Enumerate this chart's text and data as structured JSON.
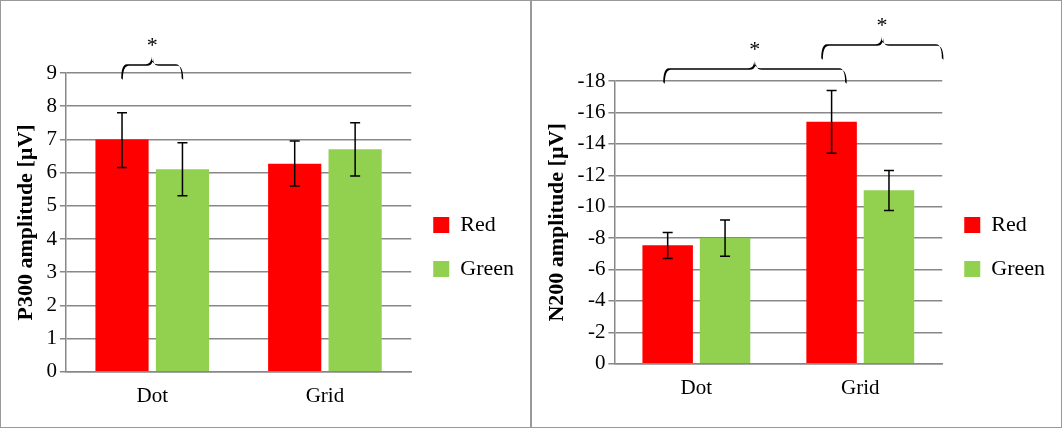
{
  "chart_data": [
    {
      "type": "bar",
      "ylabel": "P300 amplitude [µV]",
      "categories": [
        "Dot",
        "Grid"
      ],
      "ylim": [
        0,
        9
      ],
      "yticks": [
        0,
        1,
        2,
        3,
        4,
        5,
        6,
        7,
        8,
        9
      ],
      "grid": "y",
      "legend": "right",
      "annotations": [
        "*"
      ],
      "series": [
        {
          "name": "Red",
          "color": "#ff0000",
          "values": [
            7.0,
            6.27
          ],
          "errors": [
            [
              6.15,
              7.8
            ],
            [
              5.6,
              6.95
            ]
          ]
        },
        {
          "name": "Green",
          "color": "#92d050",
          "values": [
            6.1,
            6.7
          ],
          "errors": [
            [
              5.3,
              6.9
            ],
            [
              5.9,
              7.5
            ]
          ]
        }
      ]
    },
    {
      "type": "bar",
      "ylabel": "N200 amplitude [µV]",
      "categories": [
        "Dot",
        "Grid"
      ],
      "ylim": [
        0,
        -18
      ],
      "yticks": [
        0,
        -2,
        -4,
        -6,
        -8,
        -10,
        -12,
        -14,
        -16,
        -18
      ],
      "grid": "y",
      "legend": "right",
      "annotations": [
        "*",
        "*"
      ],
      "series": [
        {
          "name": "Red",
          "color": "#ff0000",
          "values": [
            -7.55,
            -15.4
          ],
          "errors": [
            [
              -8.35,
              -6.7
            ],
            [
              -17.4,
              -13.4
            ]
          ]
        },
        {
          "name": "Green",
          "color": "#92d050",
          "values": [
            -8.0,
            -11.05
          ],
          "errors": [
            [
              -9.15,
              -6.85
            ],
            [
              -12.3,
              -9.75
            ]
          ]
        }
      ]
    }
  ]
}
